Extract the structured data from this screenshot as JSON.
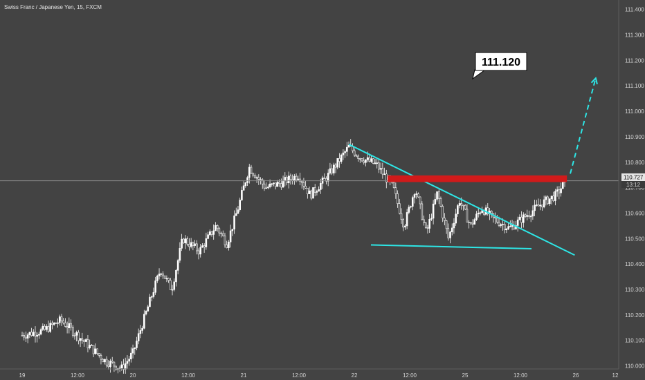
{
  "header": {
    "symbol_title": "Swiss Franc / Japanese Yen, 15, FXCM"
  },
  "colors": {
    "background": "#434343",
    "candle": "#ffffff",
    "trendline": "#2de6e6",
    "resistance_zone": "#d11a1a",
    "price_line": "#8a8a8a",
    "label_bg": "#ffffff",
    "label_text": "#000000"
  },
  "price_tag": {
    "value": "110.727",
    "countdown": "13:12"
  },
  "chart_data": {
    "type": "candlestick",
    "title": "Swiss Franc / Japanese Yen, 15, FXCM",
    "y_ticks": [
      "111.400",
      "111.300",
      "111.200",
      "111.100",
      "111.000",
      "110.900",
      "110.800",
      "110.700",
      "110.600",
      "110.500",
      "110.400",
      "110.300",
      "110.200",
      "110.100",
      "110.000"
    ],
    "x_ticks": [
      "19",
      "12:00",
      "20",
      "12:00",
      "21",
      "12:00",
      "22",
      "12:00",
      "25",
      "12:00",
      "26",
      "12"
    ],
    "ylim": [
      109.988,
      111.437
    ],
    "last_price": 110.727,
    "target_label": "111.120",
    "target_price": 111.12,
    "price_path": [
      [
        0.0,
        110.12
      ],
      [
        0.2,
        110.14
      ],
      [
        0.35,
        110.18
      ],
      [
        0.55,
        110.1
      ],
      [
        0.75,
        110.02
      ],
      [
        0.9,
        109.99
      ],
      [
        1.0,
        110.05
      ],
      [
        1.15,
        110.25
      ],
      [
        1.25,
        110.38
      ],
      [
        1.35,
        110.3
      ],
      [
        1.45,
        110.5
      ],
      [
        1.6,
        110.45
      ],
      [
        1.75,
        110.55
      ],
      [
        1.85,
        110.48
      ],
      [
        1.95,
        110.62
      ],
      [
        2.05,
        110.78
      ],
      [
        2.2,
        110.7
      ],
      [
        2.35,
        110.72
      ],
      [
        2.5,
        110.75
      ],
      [
        2.6,
        110.67
      ],
      [
        2.75,
        110.74
      ],
      [
        2.85,
        110.8
      ],
      [
        2.95,
        110.86
      ],
      [
        3.05,
        110.82
      ],
      [
        3.2,
        110.79
      ],
      [
        3.35,
        110.7
      ],
      [
        3.45,
        110.55
      ],
      [
        3.55,
        110.7
      ],
      [
        3.65,
        110.52
      ],
      [
        3.75,
        110.68
      ],
      [
        3.85,
        110.5
      ],
      [
        3.95,
        110.65
      ],
      [
        4.05,
        110.55
      ],
      [
        4.15,
        110.62
      ],
      [
        4.25,
        110.58
      ],
      [
        4.4,
        110.54
      ],
      [
        4.55,
        110.59
      ],
      [
        4.7,
        110.64
      ],
      [
        4.82,
        110.67
      ],
      [
        4.9,
        110.72
      ]
    ],
    "annotations": [
      {
        "type": "trendline",
        "name": "descending-resistance",
        "points": [
          [
            2.95,
            110.87
          ],
          [
            4.99,
            110.435
          ]
        ]
      },
      {
        "type": "trendline",
        "name": "support",
        "points": [
          [
            3.15,
            110.475
          ],
          [
            4.6,
            110.46
          ]
        ]
      },
      {
        "type": "zone",
        "name": "resistance-zone",
        "x": [
          3.3,
          4.92
        ],
        "y": [
          110.722,
          110.748
        ]
      },
      {
        "type": "dashed-arrow",
        "name": "target-arrow",
        "from": [
          4.95,
          110.755
        ],
        "to": [
          5.18,
          111.13
        ]
      },
      {
        "type": "label",
        "name": "target-label",
        "text": "111.120"
      }
    ],
    "grid": false,
    "legend": "none"
  }
}
